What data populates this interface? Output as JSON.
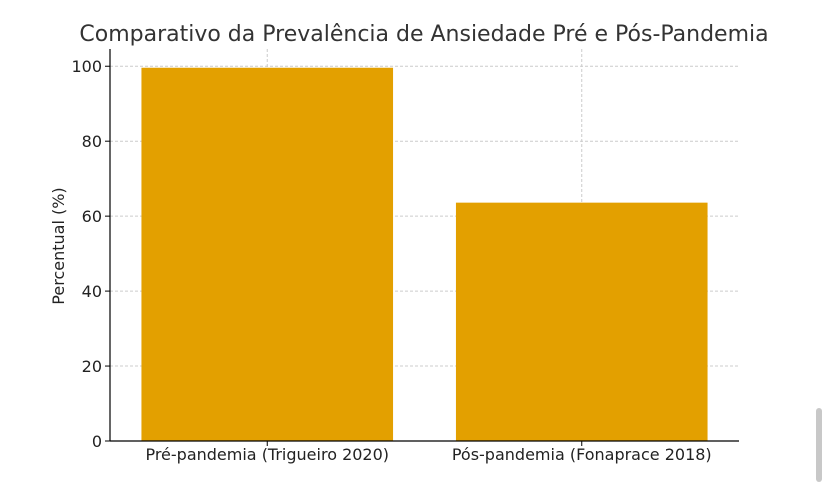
{
  "chart_data": {
    "type": "bar",
    "title": "Comparativo da Prevalência de Ansiedade Pré e Pós-Pandemia",
    "xlabel": "",
    "ylabel": "Percentual (%)",
    "categories": [
      "Pré-pandemia (Trigueiro 2020)",
      "Pós-pandemia (Fonaprace 2018)"
    ],
    "values": [
      99.6,
      63.6
    ],
    "ylim": [
      0,
      104.6
    ],
    "yticks": [
      0,
      20,
      40,
      60,
      80,
      100
    ],
    "grid": true,
    "bar_color": "#E3A000",
    "grid_color": "#cccccc"
  }
}
